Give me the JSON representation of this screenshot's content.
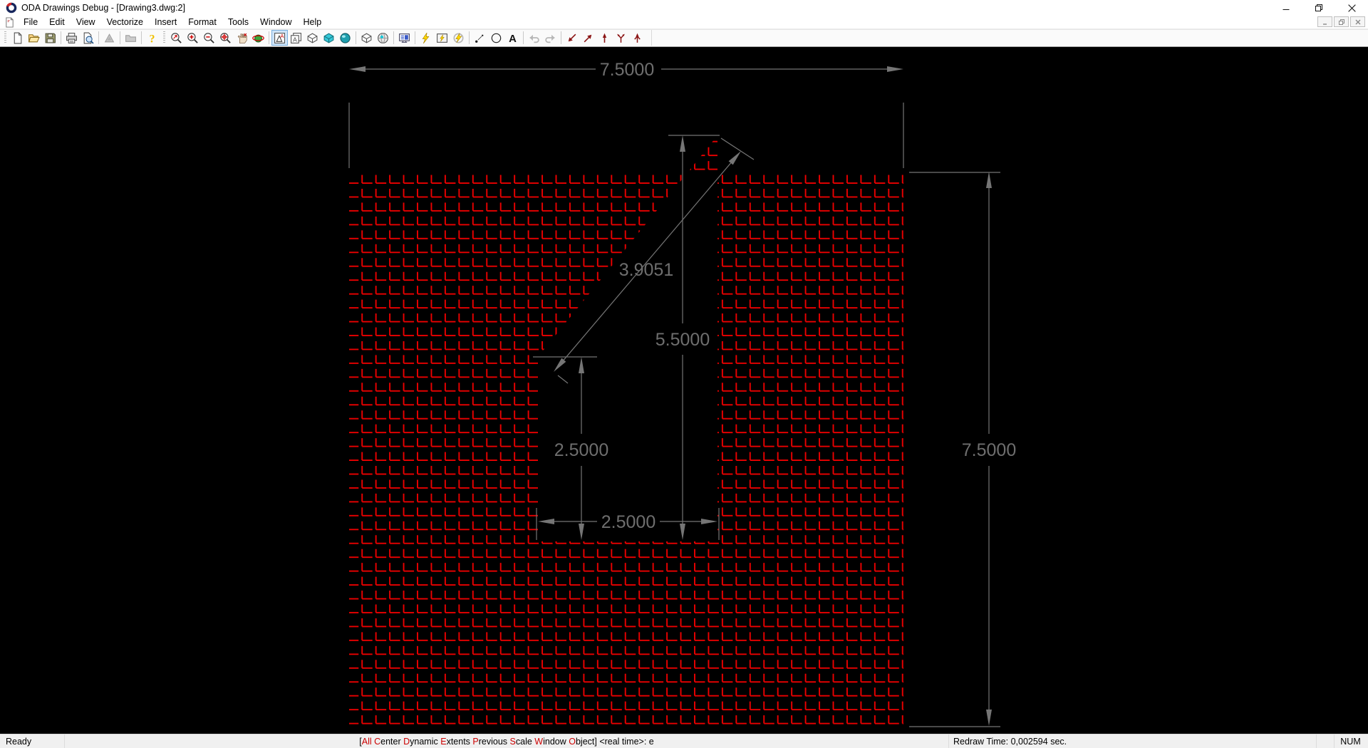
{
  "window": {
    "title": "ODA Drawings Debug - [Drawing3.dwg:2]"
  },
  "menu": {
    "items": [
      "File",
      "Edit",
      "View",
      "Vectorize",
      "Insert",
      "Format",
      "Tools",
      "Window",
      "Help"
    ]
  },
  "toolbar": {
    "items": [
      {
        "name": "grip"
      },
      {
        "name": "new-file",
        "state": "normal"
      },
      {
        "name": "open-file",
        "state": "normal"
      },
      {
        "name": "save-file",
        "state": "normal"
      },
      {
        "name": "sep"
      },
      {
        "name": "print",
        "state": "normal"
      },
      {
        "name": "print-preview",
        "state": "normal"
      },
      {
        "name": "sep"
      },
      {
        "name": "vectorize",
        "state": "disabled"
      },
      {
        "name": "sep"
      },
      {
        "name": "raster-export",
        "state": "disabled"
      },
      {
        "name": "sep"
      },
      {
        "name": "help",
        "state": "normal"
      },
      {
        "name": "grip"
      },
      {
        "name": "zoom-extents",
        "state": "normal"
      },
      {
        "name": "zoom-in",
        "state": "normal"
      },
      {
        "name": "zoom-out",
        "state": "normal"
      },
      {
        "name": "zoom-window",
        "state": "normal"
      },
      {
        "name": "pan",
        "state": "normal"
      },
      {
        "name": "orbit-3d",
        "state": "normal"
      },
      {
        "name": "sep"
      },
      {
        "name": "mode-2d-wireframe",
        "state": "selected"
      },
      {
        "name": "mode-3d-wireframe",
        "state": "normal"
      },
      {
        "name": "mode-hidden-line",
        "state": "normal"
      },
      {
        "name": "mode-flat-shaded",
        "state": "normal"
      },
      {
        "name": "mode-gouraud-shaded",
        "state": "normal"
      },
      {
        "name": "sep"
      },
      {
        "name": "view-cube",
        "state": "normal"
      },
      {
        "name": "render-globe",
        "state": "normal"
      },
      {
        "name": "sep"
      },
      {
        "name": "device-properties",
        "state": "normal"
      },
      {
        "name": "sep"
      },
      {
        "name": "regen",
        "state": "normal"
      },
      {
        "name": "regen-window",
        "state": "normal"
      },
      {
        "name": "regen-visible",
        "state": "normal"
      },
      {
        "name": "sep"
      },
      {
        "name": "point-style",
        "state": "normal"
      },
      {
        "name": "draw-circle",
        "state": "normal"
      },
      {
        "name": "draw-text",
        "state": "normal"
      },
      {
        "name": "sep"
      },
      {
        "name": "undo",
        "state": "disabled"
      },
      {
        "name": "redo",
        "state": "disabled"
      },
      {
        "name": "sep"
      },
      {
        "name": "edge-sw",
        "state": "normal"
      },
      {
        "name": "edge-ne",
        "state": "normal"
      },
      {
        "name": "edge-up",
        "state": "normal"
      },
      {
        "name": "edge-branch",
        "state": "normal"
      },
      {
        "name": "edge-up-branch",
        "state": "normal"
      }
    ]
  },
  "drawing": {
    "background": "#000000",
    "hatch_color": "#ee0000",
    "dimension_color": "#757575",
    "dimension_text_color": "#6e6e6e",
    "dimensions": {
      "width_top": "7.5000",
      "height_right": "7.5000",
      "slot_depth": "5.5000",
      "slot_left_height": "2.5000",
      "slot_width": "2.5000",
      "diagonal": "3.9051"
    }
  },
  "status_bar": {
    "ready": "Ready",
    "keyword_color": "#cc0000",
    "prompt_segments": [
      {
        "t": "[",
        "c": "k"
      },
      {
        "t": "All",
        "c": "r"
      },
      {
        "t": " ",
        "c": "k"
      },
      {
        "t": "C",
        "c": "r"
      },
      {
        "t": "enter ",
        "c": "k"
      },
      {
        "t": "D",
        "c": "r"
      },
      {
        "t": "ynamic ",
        "c": "k"
      },
      {
        "t": "E",
        "c": "r"
      },
      {
        "t": "xtents ",
        "c": "k"
      },
      {
        "t": "P",
        "c": "r"
      },
      {
        "t": "revious ",
        "c": "k"
      },
      {
        "t": "S",
        "c": "r"
      },
      {
        "t": "cale ",
        "c": "k"
      },
      {
        "t": "W",
        "c": "r"
      },
      {
        "t": "indow ",
        "c": "k"
      },
      {
        "t": "O",
        "c": "r"
      },
      {
        "t": "bject] <real time>: e",
        "c": "k"
      }
    ],
    "redraw_time": "Redraw Time: 0,002594 sec.",
    "num_lock": "NUM"
  }
}
